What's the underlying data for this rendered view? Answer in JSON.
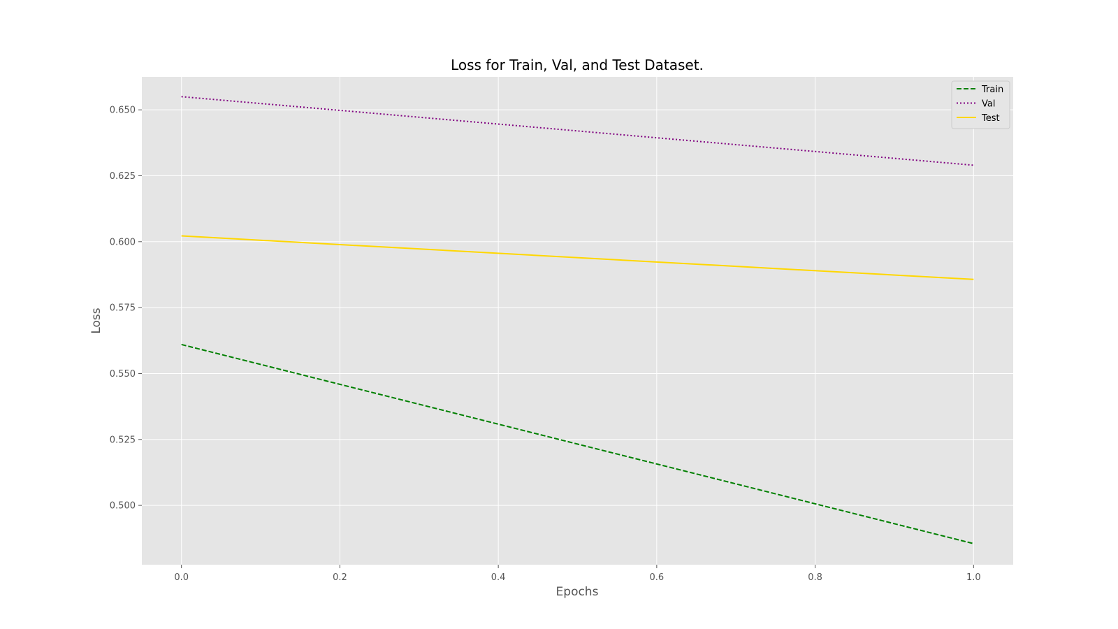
{
  "chart_data": {
    "type": "line",
    "title": "Loss for Train, Val, and Test Dataset.",
    "xlabel": "Epochs",
    "ylabel": "Loss",
    "xlim": [
      -0.05,
      1.05
    ],
    "ylim": [
      0.4775,
      0.6625
    ],
    "x_ticks": [
      0.0,
      0.2,
      0.4,
      0.6,
      0.8,
      1.0
    ],
    "x_tick_labels": [
      "0.0",
      "0.2",
      "0.4",
      "0.6",
      "0.8",
      "1.0"
    ],
    "y_ticks": [
      0.5,
      0.525,
      0.55,
      0.575,
      0.6,
      0.625,
      0.65
    ],
    "y_tick_labels": [
      "0.500",
      "0.525",
      "0.550",
      "0.575",
      "0.600",
      "0.625",
      "0.650"
    ],
    "grid": true,
    "legend_position": "top-right",
    "background_color": "#e5e5e5",
    "grid_color": "#ffffff",
    "series": [
      {
        "name": "Train",
        "x": [
          0.0,
          1.0
        ],
        "values": [
          0.561,
          0.4855
        ],
        "color": "#008000",
        "linestyle": "dashed"
      },
      {
        "name": "Val",
        "x": [
          0.0,
          1.0
        ],
        "values": [
          0.655,
          0.629
        ],
        "color": "#800080",
        "linestyle": "dotted"
      },
      {
        "name": "Test",
        "x": [
          0.0,
          1.0
        ],
        "values": [
          0.6022,
          0.5857
        ],
        "color": "#ffd700",
        "linestyle": "solid"
      }
    ]
  }
}
